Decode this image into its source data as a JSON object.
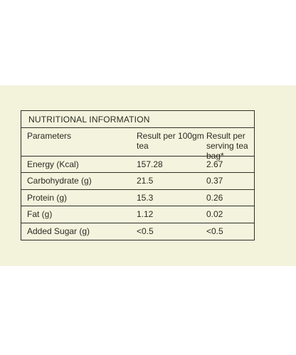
{
  "table": {
    "heading": "NUTRITIONAL INFORMATION",
    "columns": [
      "Parameters",
      "Result per 100gm tea",
      "Result per serving tea bag*"
    ],
    "rows": [
      {
        "parameter": "Energy (Kcal)",
        "per_100g": "157.28",
        "per_bag": "2.67"
      },
      {
        "parameter": "Carbohydrate (g)",
        "per_100g": "21.5",
        "per_bag": "0.37"
      },
      {
        "parameter": "Protein (g)",
        "per_100g": "15.3",
        "per_bag": "0.26"
      },
      {
        "parameter": "Fat (g)",
        "per_100g": "1.12",
        "per_bag": "0.02"
      },
      {
        "parameter": "Added Sugar (g)",
        "per_100g": "<0.5",
        "per_bag": "<0.5"
      }
    ]
  }
}
